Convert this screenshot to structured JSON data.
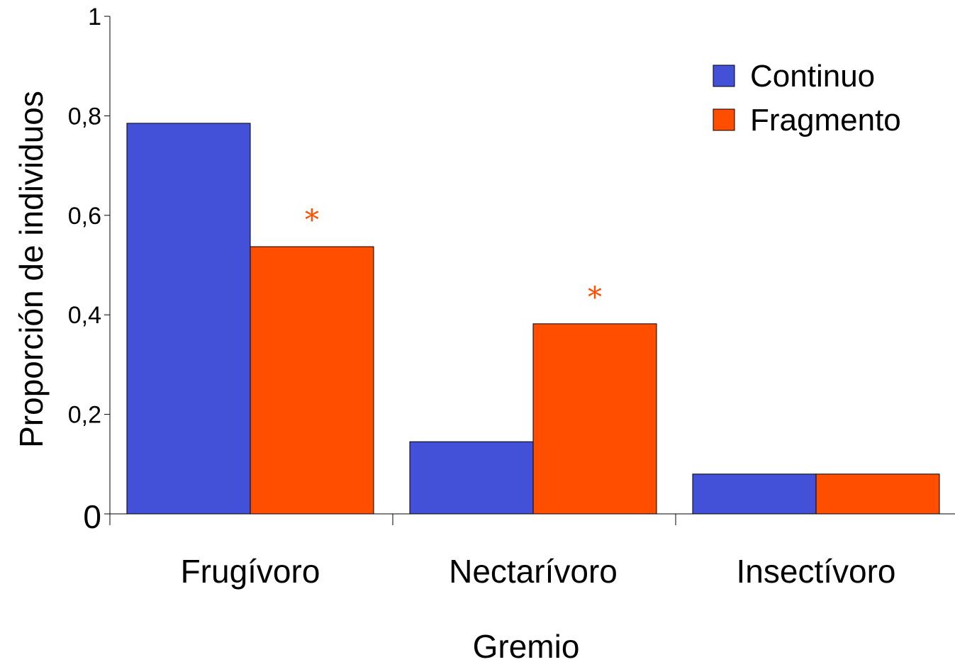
{
  "chart_data": {
    "type": "bar",
    "categories": [
      "Frugívoro",
      "Nectarívoro",
      "Insectívoro"
    ],
    "series": [
      {
        "name": "Continuo",
        "values": [
          0.785,
          0.145,
          0.08
        ],
        "color": "#4350D8"
      },
      {
        "name": "Fragmento",
        "values": [
          0.537,
          0.382,
          0.08
        ],
        "color": "#FF4E00"
      }
    ],
    "annotations": [
      {
        "category": "Frugívoro",
        "series": "Fragmento",
        "text": "*"
      },
      {
        "category": "Nectarívoro",
        "series": "Fragmento",
        "text": "*"
      }
    ],
    "xlabel": "Gremio",
    "ylabel": "Proporción de individuos",
    "ylim": [
      0,
      1
    ],
    "yticks": [
      0,
      0.2,
      0.4,
      0.6,
      0.8,
      1
    ],
    "ytick_labels": [
      "0",
      "0,2",
      "0,4",
      "0,6",
      "0,8",
      "1"
    ],
    "legend_position": "top-right",
    "grid": false,
    "annotation_color": "#FF4E00"
  }
}
